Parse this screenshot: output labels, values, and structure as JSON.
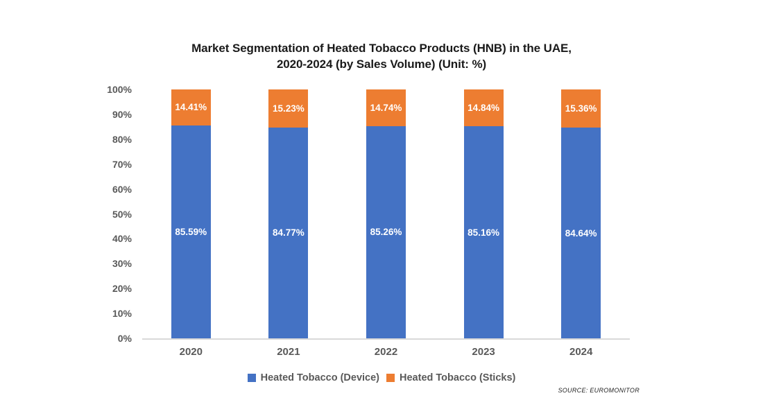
{
  "chart_data": {
    "type": "bar",
    "stacked": true,
    "title_line1": "Market Segmentation of Heated Tobacco Products (HNB) in the UAE,",
    "title_line2": "2020-2024 (by Sales Volume) (Unit: %)",
    "categories": [
      "2020",
      "2021",
      "2022",
      "2023",
      "2024"
    ],
    "series": [
      {
        "name": "Heated Tobacco (Device)",
        "color": "#4472C4",
        "values": [
          85.59,
          84.77,
          85.26,
          85.16,
          84.64
        ],
        "labels": [
          "85.59%",
          "84.77%",
          "85.26%",
          "85.16%",
          "84.64%"
        ]
      },
      {
        "name": "Heated Tobacco (Sticks)",
        "color": "#ED7D31",
        "values": [
          14.41,
          15.23,
          14.74,
          14.84,
          15.36
        ],
        "labels": [
          "14.41%",
          "15.23%",
          "14.74%",
          "14.84%",
          "15.36%"
        ]
      }
    ],
    "y_ticks": [
      "100%",
      "90%",
      "80%",
      "70%",
      "60%",
      "50%",
      "40%",
      "30%",
      "20%",
      "10%",
      "0%"
    ],
    "ylim": [
      0,
      100
    ],
    "xlabel": "",
    "ylabel": "",
    "grid": false,
    "legend_position": "bottom",
    "axis_text_color": "#595959",
    "baseline_color": "#d9d9d9",
    "label_text_color": "#ffffff"
  },
  "source_note": "SOURCE: EUROMONITOR"
}
